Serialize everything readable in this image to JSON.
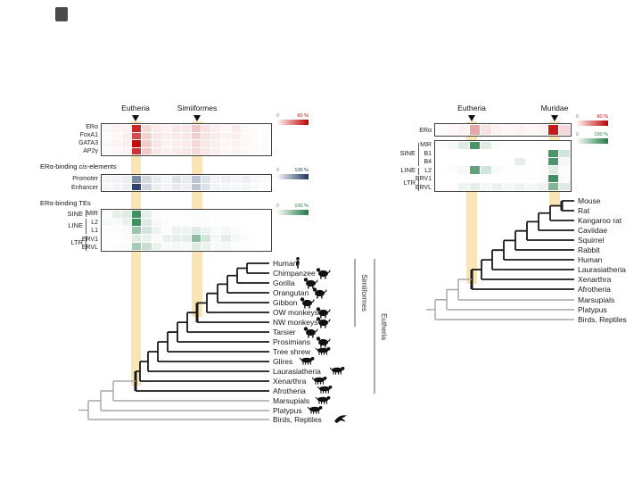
{
  "colors": {
    "red_max": "#bf0000",
    "blue_max": "#1f3864",
    "green_max": "#1e7b45",
    "highlight": "#fae6b4",
    "tree_black": "#1a1a1a",
    "tree_gray": "#a6a6a6"
  },
  "left_panel": {
    "clade_markers": [
      {
        "label": "Eutheria"
      },
      {
        "label": "Simiiformes"
      }
    ],
    "cis_title": {
      "prefix": "ERα-binding ",
      "italic": "cis",
      "suffix": "-elements"
    },
    "te_title": "ERα-binding TEs",
    "te_groups": [
      "SINE",
      "LINE",
      "LTR"
    ],
    "legend_red": {
      "min": "0",
      "max": "60 %"
    },
    "legend_blue": {
      "min": "0",
      "max": "100 %"
    },
    "legend_green": {
      "min": "0",
      "max": "100 %"
    },
    "tree": {
      "leaves": [
        "Human",
        "Chimpanzee",
        "Gorilla",
        "Orangutan",
        "Gibbon",
        "OW monkeys",
        "NW monkeys",
        "Tarsier",
        "Prosimians",
        "Tree shrew",
        "Glires",
        "Laurasiatheria",
        "Xenarthra",
        "Afrotheria",
        "Marsupials",
        "Platypus",
        "Birds, Reptiles"
      ],
      "brackets": [
        "Simiiformes",
        "Eutheria"
      ]
    }
  },
  "right_panel": {
    "clade_markers": [
      {
        "label": "Eutheria"
      },
      {
        "label": "Muridae"
      }
    ],
    "te_groups": [
      "SINE",
      "LINE",
      "LTR"
    ],
    "legend_red": {
      "min": "0",
      "max": "60 %"
    },
    "legend_green": {
      "min": "0",
      "max": "100 %"
    },
    "tree": {
      "leaves": [
        "Mouse",
        "Rat",
        "Kangaroo rat",
        "Caviidae",
        "Squirrel",
        "Rabbit",
        "Human",
        "Laurasiatheria",
        "Xenarthra",
        "Afrotheria",
        "Marsupials",
        "Platypus",
        "Birds, Reptiles"
      ]
    }
  },
  "chart_data": [
    {
      "type": "heatmap",
      "panel": "left",
      "name": "TF binding conservation",
      "unit": "%",
      "scale_max": 60,
      "color_max": "#bf0000",
      "n_columns": 17,
      "marked_columns": [
        {
          "label": "Eutheria",
          "column": 3
        },
        {
          "label": "Simiiformes",
          "column": 9
        }
      ],
      "rows": [
        {
          "label": "ERα",
          "values": [
            2,
            3,
            3,
            51,
            9,
            5,
            3,
            6,
            6,
            13,
            7,
            4,
            2,
            5,
            2,
            1,
            1
          ]
        },
        {
          "label": "FoxA1",
          "values": [
            1,
            2,
            4,
            42,
            11,
            6,
            4,
            5,
            6,
            11,
            7,
            5,
            3,
            4,
            2,
            1,
            1
          ]
        },
        {
          "label": "GATA3",
          "values": [
            2,
            3,
            4,
            57,
            12,
            6,
            3,
            4,
            5,
            9,
            6,
            4,
            2,
            3,
            2,
            1,
            1
          ]
        },
        {
          "label": "AP2γ",
          "values": [
            1,
            2,
            3,
            48,
            13,
            6,
            4,
            5,
            6,
            9,
            6,
            4,
            2,
            3,
            2,
            1,
            1
          ]
        }
      ]
    },
    {
      "type": "heatmap",
      "panel": "left",
      "name": "ERα-binding cis-elements",
      "unit": "%",
      "scale_max": 100,
      "color_max": "#1f3864",
      "n_columns": 17,
      "marked_columns": [
        {
          "label": "Eutheria",
          "column": 3
        },
        {
          "label": "Simiiformes",
          "column": 9
        }
      ],
      "rows": [
        {
          "label": "Promoter",
          "values": [
            5,
            6,
            8,
            60,
            20,
            10,
            5,
            15,
            10,
            30,
            15,
            6,
            8,
            5,
            8,
            4,
            3
          ]
        },
        {
          "label": "Enhancer",
          "values": [
            4,
            6,
            8,
            95,
            22,
            8,
            5,
            10,
            8,
            30,
            15,
            6,
            5,
            4,
            5,
            3,
            2
          ]
        }
      ]
    },
    {
      "type": "heatmap",
      "panel": "left",
      "name": "ERα-binding TEs",
      "unit": "%",
      "scale_max": 100,
      "color_max": "#1e7b45",
      "n_columns": 17,
      "marked_columns": [
        {
          "label": "Eutheria",
          "column": 3
        },
        {
          "label": "Simiiformes",
          "column": 9
        }
      ],
      "rows": [
        {
          "label": "MIR",
          "values": [
            2,
            12,
            15,
            85,
            12,
            3,
            1,
            1,
            2,
            2,
            2,
            1,
            1,
            1,
            1,
            0,
            0
          ]
        },
        {
          "label": "L2",
          "values": [
            5,
            3,
            10,
            85,
            15,
            5,
            2,
            1,
            1,
            2,
            2,
            1,
            1,
            1,
            0,
            0,
            0
          ]
        },
        {
          "label": "L1",
          "values": [
            1,
            2,
            3,
            45,
            20,
            8,
            2,
            8,
            8,
            15,
            8,
            3,
            5,
            2,
            1,
            0,
            0
          ]
        },
        {
          "label": "ERV1",
          "values": [
            1,
            1,
            2,
            15,
            10,
            3,
            10,
            12,
            12,
            50,
            20,
            5,
            12,
            5,
            2,
            1,
            0
          ]
        },
        {
          "label": "ERVL",
          "values": [
            1,
            2,
            3,
            40,
            25,
            10,
            3,
            5,
            4,
            15,
            10,
            4,
            5,
            2,
            1,
            0,
            0
          ]
        }
      ]
    },
    {
      "type": "heatmap",
      "panel": "right",
      "name": "ERα binding conservation",
      "unit": "%",
      "scale_max": 60,
      "color_max": "#bf0000",
      "n_columns": 12,
      "marked_columns": [
        {
          "label": "Eutheria",
          "column": 3
        },
        {
          "label": "Muridae",
          "column": 10
        }
      ],
      "rows": [
        {
          "label": "ERα",
          "values": [
            1,
            2,
            3,
            21,
            7,
            3,
            2,
            3,
            2,
            3,
            54,
            9
          ]
        }
      ]
    },
    {
      "type": "heatmap",
      "panel": "right",
      "name": "ERα-binding TEs",
      "unit": "%",
      "scale_max": 100,
      "color_max": "#1e7b45",
      "n_columns": 12,
      "marked_columns": [
        {
          "label": "Eutheria",
          "column": 3
        },
        {
          "label": "Muridae",
          "column": 10
        }
      ],
      "rows": [
        {
          "label": "MIR",
          "values": [
            2,
            5,
            15,
            80,
            15,
            3,
            1,
            1,
            1,
            1,
            2,
            1
          ]
        },
        {
          "label": "B1",
          "values": [
            0,
            0,
            0,
            0,
            0,
            0,
            0,
            0,
            0,
            0,
            80,
            20
          ]
        },
        {
          "label": "B4",
          "values": [
            0,
            0,
            0,
            0,
            0,
            0,
            0,
            12,
            0,
            0,
            80,
            5
          ]
        },
        {
          "label": "L2",
          "values": [
            1,
            2,
            5,
            70,
            20,
            4,
            1,
            1,
            1,
            1,
            15,
            2
          ]
        },
        {
          "label": "ERV1",
          "values": [
            0,
            0,
            0,
            1,
            1,
            1,
            1,
            1,
            1,
            2,
            85,
            3
          ]
        },
        {
          "label": "ERVL",
          "values": [
            0,
            1,
            8,
            12,
            5,
            10,
            5,
            8,
            5,
            8,
            55,
            15
          ]
        }
      ]
    }
  ]
}
